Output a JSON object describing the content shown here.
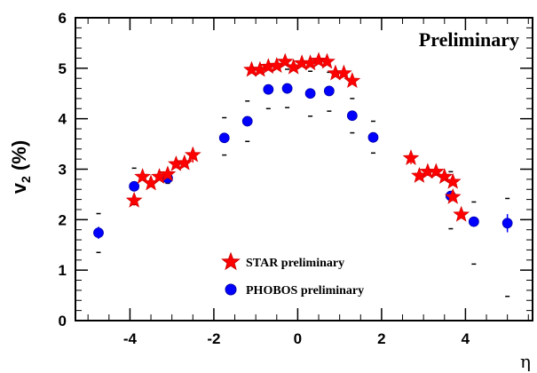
{
  "chart_data": {
    "type": "scatter",
    "title": "",
    "watermark": "Preliminary",
    "xlabel": "η",
    "ylabel_main": "v",
    "ylabel_sub": "2",
    "ylabel_rest": " (%)",
    "xlim": [
      -5.3,
      5.6
    ],
    "ylim": [
      0,
      6
    ],
    "x_ticks": [
      -4,
      -2,
      0,
      2,
      4
    ],
    "x_tick_labels": [
      "-4",
      "-2",
      "0",
      "2",
      "4"
    ],
    "y_ticks": [
      0,
      1,
      2,
      3,
      4,
      5,
      6
    ],
    "y_tick_labels": [
      "0",
      "1",
      "2",
      "3",
      "4",
      "5",
      "6"
    ],
    "grid": false,
    "legend_position": "bottom-center",
    "series": [
      {
        "name": "STAR preliminary",
        "marker": "star",
        "color": "#ff0000",
        "stroke": "#cc0000",
        "points": [
          {
            "x": -3.9,
            "y": 2.38,
            "err": 0.1
          },
          {
            "x": -3.7,
            "y": 2.85,
            "err": 0.08
          },
          {
            "x": -3.5,
            "y": 2.72,
            "err": 0.08
          },
          {
            "x": -3.3,
            "y": 2.85,
            "err": 0.08
          },
          {
            "x": -3.1,
            "y": 2.9,
            "err": 0.08
          },
          {
            "x": -2.9,
            "y": 3.1,
            "err": 0.08
          },
          {
            "x": -2.7,
            "y": 3.12,
            "err": 0.08
          },
          {
            "x": -2.5,
            "y": 3.28,
            "err": 0.15
          },
          {
            "x": -1.1,
            "y": 4.97,
            "err": 0.05
          },
          {
            "x": -0.9,
            "y": 4.97,
            "err": 0.05
          },
          {
            "x": -0.7,
            "y": 5.03,
            "err": 0.05
          },
          {
            "x": -0.5,
            "y": 5.05,
            "err": 0.05
          },
          {
            "x": -0.3,
            "y": 5.13,
            "err": 0.05
          },
          {
            "x": -0.1,
            "y": 5.02,
            "err": 0.05
          },
          {
            "x": 0.1,
            "y": 5.1,
            "err": 0.05
          },
          {
            "x": 0.3,
            "y": 5.1,
            "err": 0.05
          },
          {
            "x": 0.5,
            "y": 5.15,
            "err": 0.05
          },
          {
            "x": 0.7,
            "y": 5.13,
            "err": 0.05
          },
          {
            "x": 0.9,
            "y": 4.9,
            "err": 0.05
          },
          {
            "x": 1.1,
            "y": 4.9,
            "err": 0.05
          },
          {
            "x": 1.3,
            "y": 4.75,
            "err": 0.05
          },
          {
            "x": 2.7,
            "y": 3.22,
            "err": 0.12
          },
          {
            "x": 2.9,
            "y": 2.87,
            "err": 0.08
          },
          {
            "x": 3.1,
            "y": 2.95,
            "err": 0.08
          },
          {
            "x": 3.3,
            "y": 2.95,
            "err": 0.08
          },
          {
            "x": 3.5,
            "y": 2.85,
            "err": 0.08
          },
          {
            "x": 3.7,
            "y": 2.75,
            "err": 0.08
          },
          {
            "x": 3.7,
            "y": 2.45,
            "err": 0.08
          },
          {
            "x": 3.9,
            "y": 2.1,
            "err": 0.08
          }
        ]
      },
      {
        "name": "PHOBOS preliminary",
        "marker": "circle",
        "color": "#0000ff",
        "stroke": "#0000aa",
        "points": [
          {
            "x": -4.75,
            "y": 1.74,
            "err": 0.12,
            "sys_lo": 1.35,
            "sys_hi": 2.12
          },
          {
            "x": -3.9,
            "y": 2.66,
            "err": 0.1,
            "sys_lo": 2.3,
            "sys_hi": 3.02
          },
          {
            "x": -3.1,
            "y": 2.82,
            "err": 0.1,
            "sys_lo": 2.72,
            "sys_hi": 2.9
          },
          {
            "x": -1.75,
            "y": 3.62,
            "err": 0.1,
            "sys_lo": 3.28,
            "sys_hi": 4.02
          },
          {
            "x": -1.2,
            "y": 3.95,
            "err": 0.1,
            "sys_lo": 3.55,
            "sys_hi": 4.35
          },
          {
            "x": -0.7,
            "y": 4.58,
            "err": 0.1,
            "sys_lo": 4.2,
            "sys_hi": 4.97
          },
          {
            "x": -0.25,
            "y": 4.6,
            "err": 0.1,
            "sys_lo": 4.22,
            "sys_hi": 4.98
          },
          {
            "x": 0.3,
            "y": 4.5,
            "err": 0.1,
            "sys_lo": 4.05,
            "sys_hi": 4.94
          },
          {
            "x": 0.75,
            "y": 4.55,
            "err": 0.1,
            "sys_lo": 4.15,
            "sys_hi": 4.92
          },
          {
            "x": 1.3,
            "y": 4.06,
            "err": 0.1,
            "sys_lo": 3.72,
            "sys_hi": 4.4
          },
          {
            "x": 1.8,
            "y": 3.63,
            "err": 0.08,
            "sys_lo": 3.32,
            "sys_hi": 3.95
          },
          {
            "x": 3.65,
            "y": 2.47,
            "err": 0.1,
            "sys_lo": 1.82,
            "sys_hi": 2.95
          },
          {
            "x": 4.2,
            "y": 1.96,
            "err": 0.1,
            "sys_lo": 1.12,
            "sys_hi": 2.35
          },
          {
            "x": 5.0,
            "y": 1.93,
            "err": 0.18,
            "sys_lo": 0.48,
            "sys_hi": 2.42
          }
        ]
      }
    ]
  }
}
